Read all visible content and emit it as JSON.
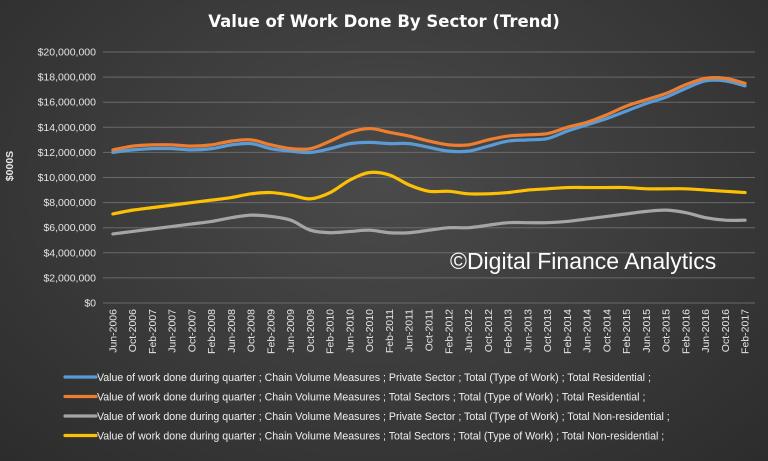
{
  "chart_data": {
    "type": "line",
    "title": "Value of Work Done By Sector (Trend)",
    "ylabel": "$000S",
    "xlabel": "",
    "ylim": [
      0,
      20000000
    ],
    "y_ticks": [
      "$0",
      "$2,000,000",
      "$4,000,000",
      "$6,000,000",
      "$8,000,000",
      "$10,000,000",
      "$12,000,000",
      "$14,000,000",
      "$16,000,000",
      "$18,000,000",
      "$20,000,000"
    ],
    "x_tick_labels": [
      "Jun-2006",
      "Oct-2006",
      "Feb-2007",
      "Jun-2007",
      "Oct-2007",
      "Feb-2008",
      "Jun-2008",
      "Oct-2008",
      "Feb-2009",
      "Jun-2009",
      "Oct-2009",
      "Feb-2010",
      "Jun-2010",
      "Oct-2010",
      "Feb-2011",
      "Jun-2011",
      "Oct-2011",
      "Feb-2012",
      "Jun-2012",
      "Oct-2012",
      "Feb-2013",
      "Jun-2013",
      "Oct-2013",
      "Feb-2014",
      "Jun-2014",
      "Oct-2014",
      "Feb-2015",
      "Jun-2015",
      "Oct-2015",
      "Feb-2016",
      "Jun-2016",
      "Oct-2016",
      "Feb-2017"
    ],
    "grid": true,
    "legend_position": "bottom",
    "watermark": "©Digital Finance Analytics",
    "series": [
      {
        "name": "Value of work done during quarter ;  Chain Volume Measures ;  Private Sector ;  Total (Type of Work) ;  Total Residential ;",
        "color": "#5b9bd5",
        "values": [
          12000000,
          12200000,
          12300000,
          12300000,
          12200000,
          12300000,
          12600000,
          12700000,
          12300000,
          12100000,
          12000000,
          12300000,
          12700000,
          12800000,
          12700000,
          12700000,
          12400000,
          12100000,
          12100000,
          12500000,
          12900000,
          13000000,
          13100000,
          13700000,
          14200000,
          14700000,
          15300000,
          15900000,
          16400000,
          17100000,
          17700000,
          17700000,
          17300000
        ]
      },
      {
        "name": "Value of work done during quarter ;  Chain Volume Measures ;  Total Sectors ;  Total (Type of Work) ;  Total Residential ;",
        "color": "#ed7d31",
        "values": [
          12200000,
          12500000,
          12600000,
          12600000,
          12500000,
          12600000,
          12900000,
          13000000,
          12600000,
          12300000,
          12300000,
          12900000,
          13600000,
          13900000,
          13600000,
          13300000,
          12900000,
          12600000,
          12600000,
          13000000,
          13300000,
          13400000,
          13500000,
          14000000,
          14400000,
          15000000,
          15700000,
          16200000,
          16700000,
          17400000,
          17900000,
          17900000,
          17500000
        ]
      },
      {
        "name": "Value of work done during quarter ;  Chain Volume Measures ;  Private Sector ;  Total (Type of Work) ;  Total Non-residential ;",
        "color": "#a5a5a5",
        "values": [
          5500000,
          5700000,
          5900000,
          6100000,
          6300000,
          6500000,
          6800000,
          7000000,
          6900000,
          6600000,
          5800000,
          5600000,
          5700000,
          5800000,
          5600000,
          5600000,
          5800000,
          6000000,
          6000000,
          6200000,
          6400000,
          6400000,
          6400000,
          6500000,
          6700000,
          6900000,
          7100000,
          7300000,
          7400000,
          7200000,
          6800000,
          6600000,
          6600000
        ]
      },
      {
        "name": "Value of work done during quarter ;  Chain Volume Measures ;  Total Sectors ;  Total (Type of Work) ;  Total Non-residential ;",
        "color": "#ffc000",
        "values": [
          7100000,
          7400000,
          7600000,
          7800000,
          8000000,
          8200000,
          8400000,
          8700000,
          8800000,
          8600000,
          8300000,
          8800000,
          9800000,
          10400000,
          10200000,
          9400000,
          8900000,
          8900000,
          8700000,
          8700000,
          8800000,
          9000000,
          9100000,
          9200000,
          9200000,
          9200000,
          9200000,
          9100000,
          9100000,
          9100000,
          9000000,
          8900000,
          8800000
        ]
      }
    ]
  }
}
